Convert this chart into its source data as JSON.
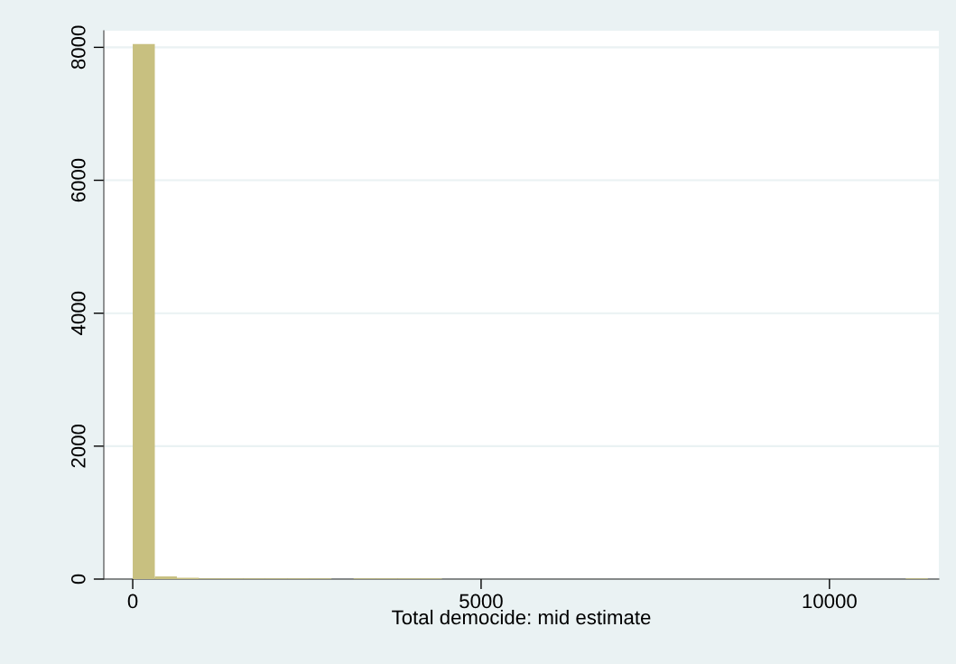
{
  "chart_data": {
    "type": "histogram",
    "xlabel": "Total democide: mid estimate",
    "bins": [
      0,
      317,
      634,
      951,
      1268,
      1585,
      1902,
      2219,
      2536,
      2853,
      3170,
      3487,
      3804,
      4121,
      4438,
      4755,
      5072,
      5389,
      5706,
      6023,
      6340,
      6657,
      6974,
      7291,
      7608,
      7925,
      8242,
      8559,
      8876,
      9193,
      9510,
      9827,
      10144,
      10461,
      10778,
      11095,
      11412
    ],
    "values": [
      8050,
      40,
      20,
      10,
      10,
      10,
      10,
      10,
      10,
      0,
      10,
      10,
      10,
      10,
      0,
      0,
      0,
      0,
      0,
      0,
      0,
      0,
      0,
      0,
      0,
      0,
      0,
      0,
      0,
      0,
      0,
      0,
      0,
      0,
      0,
      10
    ],
    "color": "#c8c080",
    "xlim": [
      -415,
      11570
    ],
    "ylim": [
      0,
      8250
    ],
    "xticks": [
      0,
      5000,
      10000
    ],
    "yticks": [
      0,
      2000,
      4000,
      6000,
      8000
    ],
    "grid": "y"
  }
}
